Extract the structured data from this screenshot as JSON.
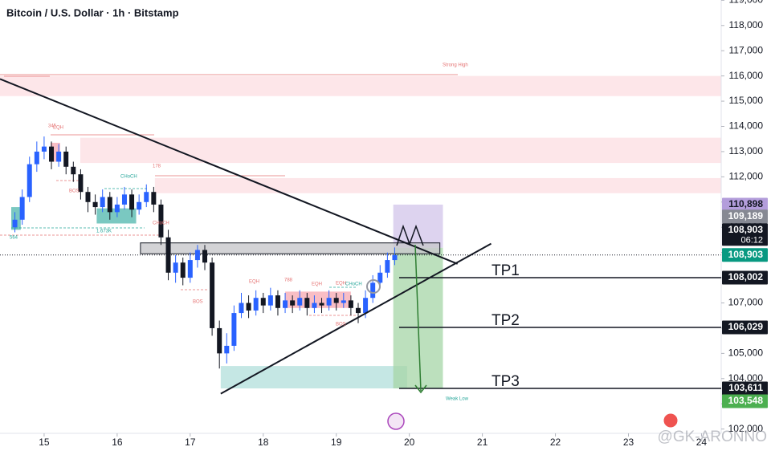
{
  "chart_data": {
    "type": "candlestick",
    "title": "Bitcoin / U.S. Dollar · 1h · Bitstamp",
    "xlim": [
      14.396,
      24.27
    ],
    "xticks": [
      15,
      16,
      17,
      18,
      19,
      20,
      21,
      22,
      23,
      24
    ],
    "ylim": [
      101830,
      119011
    ],
    "yticks": [
      {
        "value": 102000,
        "label": "102,000"
      },
      {
        "value": 103000,
        "label": "103,000"
      },
      {
        "value": 104000,
        "label": "104,000"
      },
      {
        "value": 105000,
        "label": "105,000"
      },
      {
        "value": 106000,
        "label": "106,000"
      },
      {
        "value": 107000,
        "label": "107,000"
      },
      {
        "value": 108000,
        "label": "108,000"
      },
      {
        "value": 109000,
        "label": "109,000"
      },
      {
        "value": 110000,
        "label": "110,000"
      },
      {
        "value": 111000,
        "label": "111,000"
      },
      {
        "value": 112000,
        "label": "112,000"
      },
      {
        "value": 113000,
        "label": "113,000"
      },
      {
        "value": 114000,
        "label": "114,000"
      },
      {
        "value": 115000,
        "label": "115,000"
      },
      {
        "value": 116000,
        "label": "116,000"
      },
      {
        "value": 117000,
        "label": "117,000"
      },
      {
        "value": 118000,
        "label": "118,000"
      },
      {
        "value": 119000,
        "label": "119,000"
      }
    ],
    "up_color": "#2962ff",
    "down_color": "#131722",
    "candles": {
      "x": [
        14.6,
        14.7,
        14.8,
        14.9,
        15.0,
        15.1,
        15.2,
        15.3,
        15.4,
        15.5,
        15.6,
        15.7,
        15.8,
        15.9,
        16.0,
        16.1,
        16.2,
        16.3,
        16.4,
        16.5,
        16.6,
        16.7,
        16.8,
        16.9,
        17.0,
        17.1,
        17.2,
        17.3,
        17.4,
        17.5,
        17.6,
        17.7,
        17.8,
        17.9,
        18.0,
        18.1,
        18.2,
        18.3,
        18.4,
        18.5,
        18.6,
        18.7,
        18.8,
        18.9,
        19.0,
        19.1,
        19.2,
        19.3,
        19.4,
        19.5,
        19.6,
        19.7,
        19.8
      ],
      "ohlc": [
        [
          110000,
          110600,
          109800,
          110300
        ],
        [
          110300,
          111500,
          110100,
          111200
        ],
        [
          111200,
          112800,
          111000,
          112500
        ],
        [
          112500,
          113400,
          112200,
          113000
        ],
        [
          113000,
          113600,
          112700,
          113200
        ],
        [
          113200,
          113400,
          112300,
          112600
        ],
        [
          112600,
          113300,
          112400,
          113000
        ],
        [
          113000,
          113200,
          112100,
          112400
        ],
        [
          112400,
          112600,
          111800,
          112100
        ],
        [
          112100,
          112300,
          111100,
          111400
        ],
        [
          111400,
          111600,
          110600,
          111000
        ],
        [
          111000,
          111300,
          110500,
          110800
        ],
        [
          110800,
          111500,
          110600,
          111200
        ],
        [
          111200,
          111400,
          110300,
          110600
        ],
        [
          110600,
          111200,
          110400,
          110900
        ],
        [
          110900,
          111600,
          110700,
          111300
        ],
        [
          111300,
          111500,
          110400,
          110700
        ],
        [
          110700,
          111300,
          110500,
          111000
        ],
        [
          111000,
          111700,
          110800,
          111400
        ],
        [
          111400,
          111600,
          110600,
          110900
        ],
        [
          110900,
          111100,
          109300,
          109600
        ],
        [
          109600,
          109900,
          107900,
          108200
        ],
        [
          108200,
          108900,
          107800,
          108600
        ],
        [
          108600,
          108800,
          107700,
          108000
        ],
        [
          108000,
          109000,
          107800,
          108700
        ],
        [
          108700,
          109300,
          108400,
          109100
        ],
        [
          109100,
          109300,
          108300,
          108600
        ],
        [
          108600,
          108800,
          105700,
          106000
        ],
        [
          106000,
          106300,
          104400,
          105000
        ],
        [
          105000,
          105800,
          104600,
          105300
        ],
        [
          105300,
          106900,
          105100,
          106600
        ],
        [
          106600,
          107400,
          106400,
          107000
        ],
        [
          107000,
          107300,
          106400,
          106700
        ],
        [
          106700,
          107500,
          106500,
          107200
        ],
        [
          107200,
          107400,
          106600,
          106900
        ],
        [
          106900,
          107600,
          106700,
          107300
        ],
        [
          107300,
          107500,
          106500,
          106800
        ],
        [
          106800,
          107400,
          106600,
          107100
        ],
        [
          107100,
          107300,
          106600,
          106900
        ],
        [
          106900,
          107500,
          106700,
          107200
        ],
        [
          107200,
          107400,
          106500,
          106800
        ],
        [
          106800,
          107300,
          106600,
          107000
        ],
        [
          107000,
          107200,
          106600,
          106900
        ],
        [
          106900,
          107500,
          106700,
          107200
        ],
        [
          107200,
          107400,
          106700,
          107000
        ],
        [
          107000,
          107400,
          106800,
          107100
        ],
        [
          107100,
          107300,
          106500,
          106800
        ],
        [
          106800,
          107000,
          106200,
          106600
        ],
        [
          106600,
          107500,
          106400,
          107200
        ],
        [
          107200,
          108100,
          107000,
          107800
        ],
        [
          107800,
          108500,
          107600,
          108200
        ],
        [
          108200,
          109000,
          108000,
          108700
        ],
        [
          108700,
          109200,
          108500,
          108900
        ]
      ]
    },
    "zones": [
      {
        "color": "#fcdde2",
        "x": [
          14.396,
          24.27
        ],
        "y": [
          115200,
          116000
        ]
      },
      {
        "color": "#fcdde2",
        "x": [
          15.495,
          24.27
        ],
        "y": [
          112550,
          113550
        ]
      },
      {
        "color": "#fcdde2",
        "x": [
          16.517,
          24.27
        ],
        "y": [
          111350,
          111950
        ]
      },
      {
        "color": "#f7a8b1",
        "x": [
          15.09,
          15.22
        ],
        "y": [
          112600,
          113350
        ]
      },
      {
        "color": "#f7a8b1",
        "x": [
          18.3,
          19.2
        ],
        "y": [
          106800,
          107450
        ]
      },
      {
        "color": "#4db6ac",
        "x": [
          14.55,
          14.68
        ],
        "y": [
          109900,
          110800
        ]
      },
      {
        "color": "#4db6ac",
        "x": [
          15.72,
          16.26
        ],
        "y": [
          110150,
          110750
        ]
      },
      {
        "color": "#b2dfdb",
        "x": [
          17.418,
          19.97
        ],
        "y": [
          103611,
          104500
        ]
      },
      {
        "color": "#a5d6a7",
        "x": [
          19.78,
          20.46
        ],
        "y": [
          103611,
          109189
        ]
      },
      {
        "color": "#d1c4e9",
        "x": [
          19.78,
          20.46
        ],
        "y": [
          109189,
          110898
        ]
      },
      {
        "color": "#c8c8cc",
        "x": [
          16.319,
          20.418
        ],
        "y": [
          108950,
          109380
        ]
      }
    ],
    "trendlines": [
      {
        "x": [
          14.396,
          20.66
        ],
        "y": [
          115880,
          108550
        ]
      },
      {
        "x": [
          17.418,
          21.12
        ],
        "y": [
          103400,
          109350
        ]
      }
    ],
    "targets": [
      {
        "name": "TP1",
        "value": 108002
      },
      {
        "name": "TP2",
        "value": 106029
      },
      {
        "name": "TP3",
        "value": 103611
      }
    ],
    "last_price": 108903,
    "price_labels": [
      {
        "value": 110898,
        "label": "110,898",
        "color": "#b39ddb",
        "text_color": "#131722"
      },
      {
        "value": 109189,
        "label": "109,189",
        "color": "#868993",
        "text_color": "#ffffff"
      },
      {
        "value": 108903,
        "label": "108,903",
        "color": "#131722",
        "text_color": "#ffffff",
        "countdown": "06:12"
      },
      {
        "value": 108903,
        "label": "108,903",
        "color": "#089981",
        "text_color": "#ffffff"
      },
      {
        "value": 108002,
        "label": "108,002",
        "color": "#131722",
        "text_color": "#ffffff"
      },
      {
        "value": 106029,
        "label": "106,029",
        "color": "#131722",
        "text_color": "#ffffff"
      },
      {
        "value": 103611,
        "label": "103,611",
        "color": "#131722",
        "text_color": "#ffffff"
      },
      {
        "value": 103548,
        "label": "103,548",
        "color": "#4caf50",
        "text_color": "#ffffff"
      }
    ],
    "annotations": [
      {
        "text": "Strong High",
        "color": "#e57373"
      },
      {
        "text": "Weak Low",
        "color": "#26a69a"
      },
      {
        "text": "345",
        "color": "#e57373"
      },
      {
        "text": "EQH",
        "color": "#e57373"
      },
      {
        "text": "BOS",
        "color": "#e57373"
      },
      {
        "text": "CHoCH",
        "color": "#26a69a"
      },
      {
        "text": "178",
        "color": "#e57373"
      },
      {
        "text": "564",
        "color": "#26a69a"
      },
      {
        "text": "1.673K",
        "color": "#26a69a"
      },
      {
        "text": "CHoCH",
        "color": "#e57373"
      },
      {
        "text": "BOS",
        "color": "#e57373"
      },
      {
        "text": "EQH",
        "color": "#e57373"
      },
      {
        "text": "788",
        "color": "#e57373"
      },
      {
        "text": "EQH",
        "color": "#e57373"
      },
      {
        "text": "EQH",
        "color": "#e57373"
      },
      {
        "text": "CHoCH",
        "color": "#26a69a"
      },
      {
        "text": "BOS",
        "color": "#e57373"
      }
    ],
    "watermark": "@GK-ARONNO"
  }
}
